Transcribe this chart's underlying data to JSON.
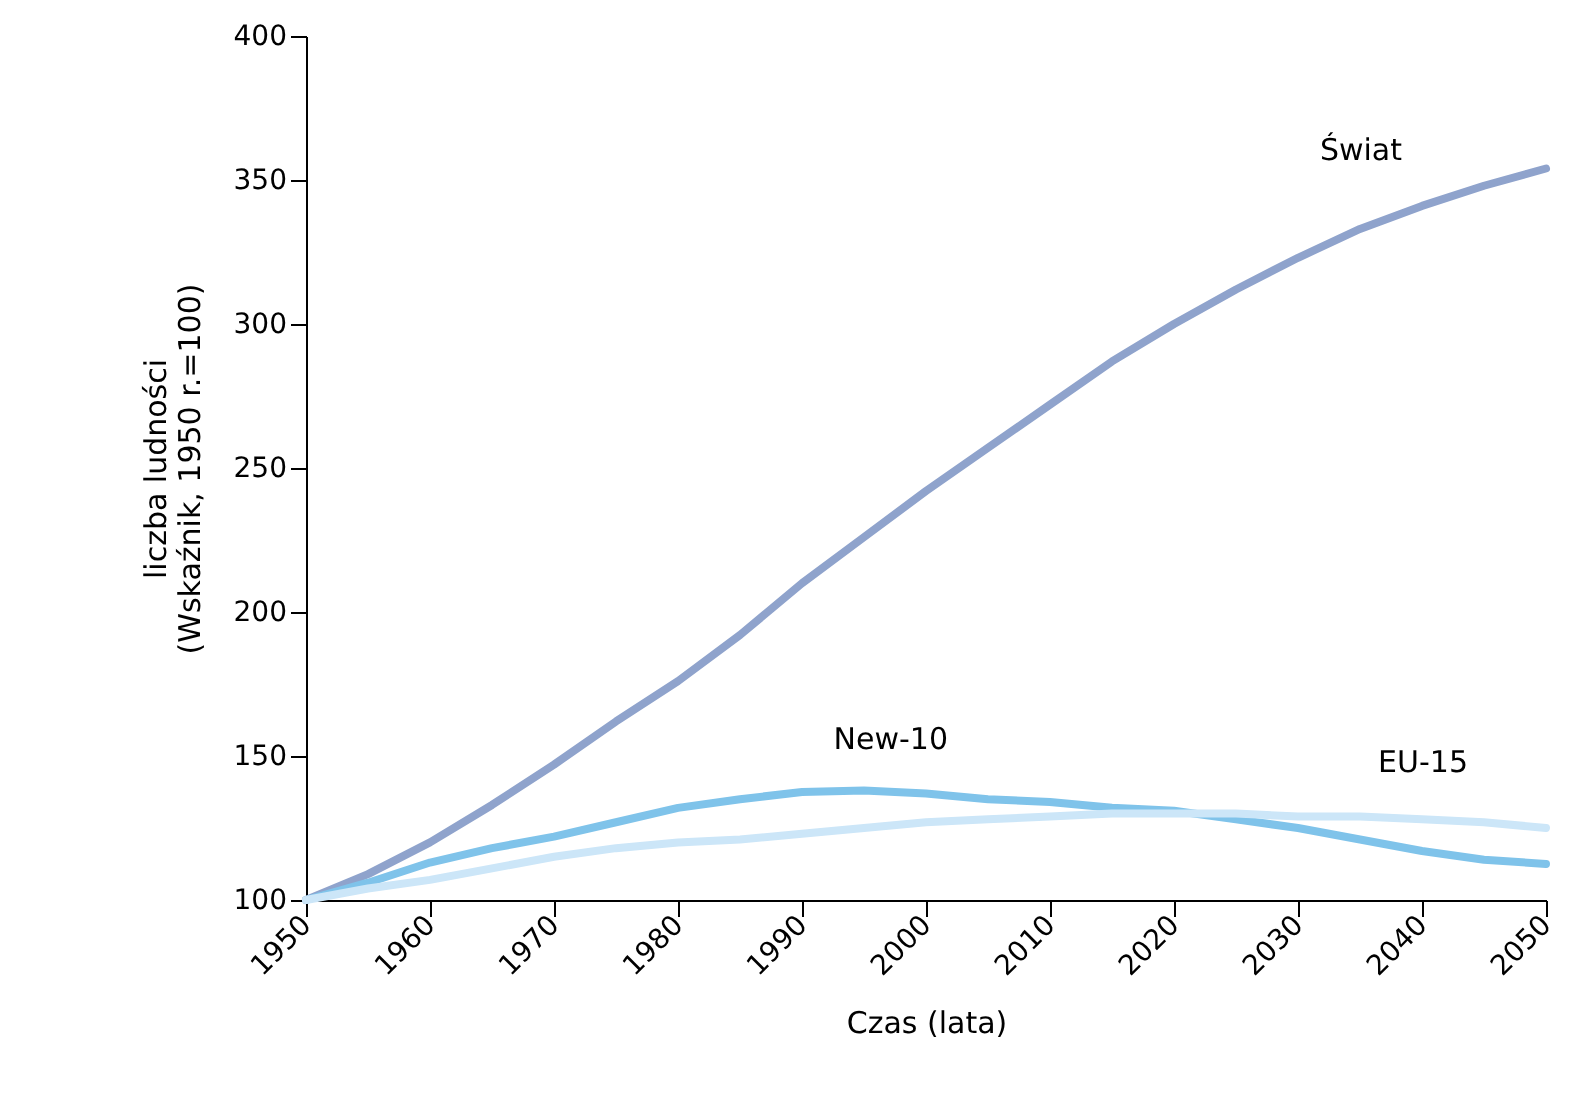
{
  "chart_data": {
    "type": "line",
    "xlabel": "Czas (lata)",
    "ylabel": "liczba ludności\n(Wskaźnik, 1950 r.=100)",
    "x": [
      1950,
      1955,
      1960,
      1965,
      1970,
      1975,
      1980,
      1985,
      1990,
      1995,
      2000,
      2005,
      2010,
      2015,
      2020,
      2025,
      2030,
      2035,
      2040,
      2045,
      2050
    ],
    "series": [
      {
        "name": "Świat",
        "color": "#8fa3cc",
        "values": [
          100,
          109,
          120,
          133,
          147,
          162,
          176,
          192,
          210,
          226,
          242,
          257,
          272,
          287,
          300,
          312,
          323,
          333,
          341,
          348,
          354
        ]
      },
      {
        "name": "New-10",
        "color": "#7fc3ea",
        "values": [
          100,
          106,
          113,
          118,
          122,
          127,
          132,
          135,
          137.5,
          138,
          137,
          135,
          134,
          132,
          131,
          128,
          125,
          121,
          117,
          114,
          112.5
        ]
      },
      {
        "name": "EU-15",
        "color": "#cce6f8",
        "values": [
          100,
          104,
          107,
          111,
          115,
          118,
          120,
          121,
          123,
          125,
          127,
          128,
          129,
          130,
          130,
          130,
          129,
          129,
          128,
          127,
          125
        ]
      }
    ],
    "xlim": [
      1950,
      2050
    ],
    "xticks": [
      1950,
      1960,
      1970,
      1980,
      1990,
      2000,
      2010,
      2020,
      2030,
      2040,
      2050
    ],
    "ylim": [
      100,
      400
    ],
    "yticks": [
      100,
      150,
      200,
      250,
      300,
      350,
      400
    ],
    "grid": false,
    "marker": "none",
    "line_style": "solid"
  }
}
